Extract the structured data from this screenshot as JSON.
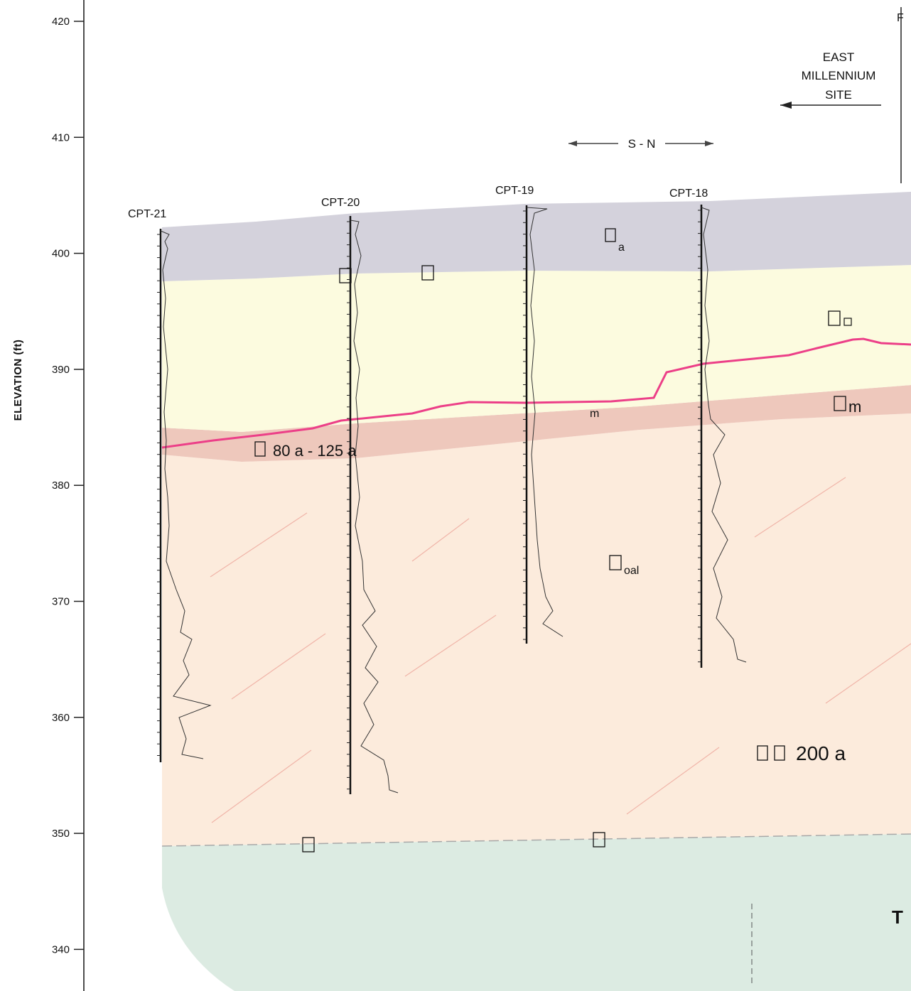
{
  "axis": {
    "title": "ELEVATION (ft)",
    "ticks": [
      420,
      410,
      400,
      390,
      380,
      370,
      360,
      350,
      340
    ]
  },
  "direction": {
    "label": "S - N"
  },
  "site": {
    "lines": [
      "EAST",
      "MILLENNIUM",
      "SITE"
    ]
  },
  "edge_marker": {
    "label": "F"
  },
  "cpts": [
    {
      "label": "CPT-21",
      "top": 402,
      "bottom": 356
    },
    {
      "label": "CPT-20",
      "top": 403.2,
      "bottom": 353
    },
    {
      "label": "CPT-19",
      "top": 404,
      "bottom": 366
    },
    {
      "label": "CPT-18",
      "top": 404,
      "bottom": 364
    }
  ],
  "units": {
    "top": "a",
    "fill": "",
    "marine": "m",
    "old_alluvium": "oal",
    "bedrock": "T",
    "contact_marker": ""
  },
  "annotations": {
    "marine_strength": "80 a - 125 a",
    "alluvium_strength": "200 a",
    "small_mark": "m"
  },
  "colors": {
    "top_layer": "#d4d2dc",
    "fill_layer": "#fcfbdf",
    "marine_layer": "#eec8bc",
    "alluvium": "#fcebdc",
    "bedrock": "#dcebe2",
    "groundwater_line": "#ec3f88",
    "hatch": "#f0b4a8"
  }
}
